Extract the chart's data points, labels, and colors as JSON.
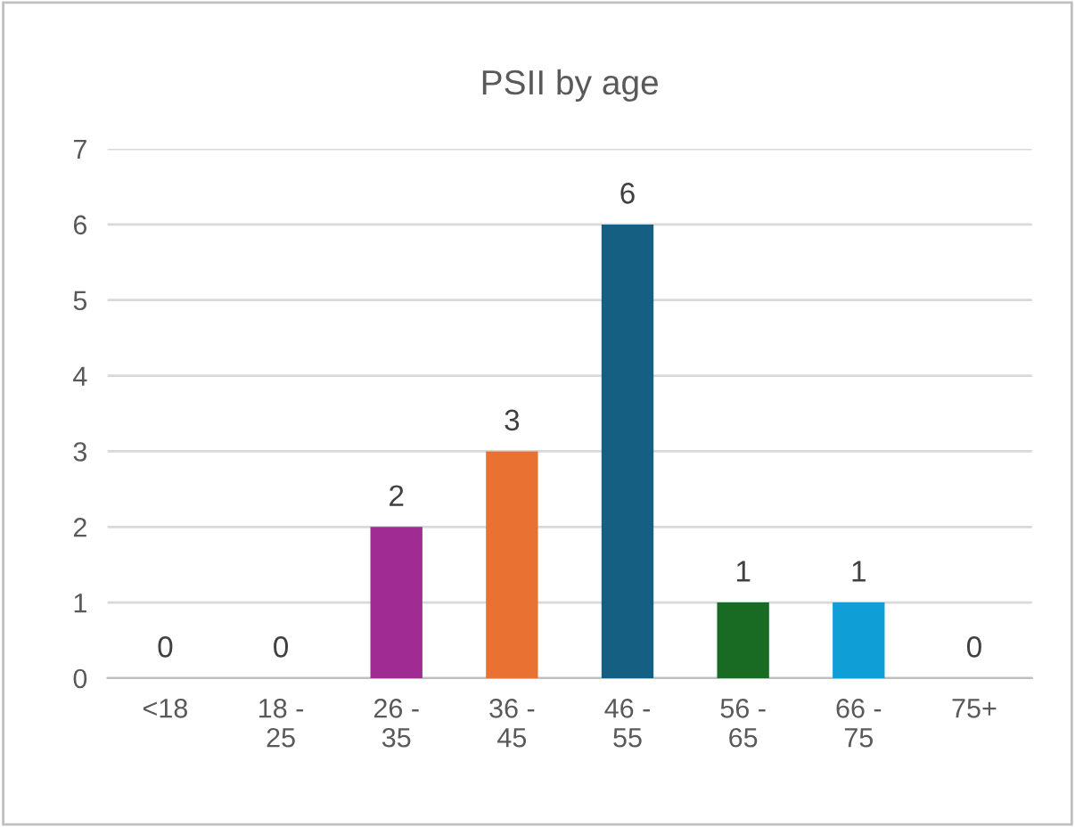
{
  "chart_data": {
    "type": "bar",
    "title": "PSII by age",
    "categories": [
      "<18",
      "18 - 25",
      "26 - 35",
      "36 - 45",
      "46 - 55",
      "56 - 65",
      "66 - 75",
      "75+"
    ],
    "values": [
      0,
      0,
      2,
      3,
      6,
      1,
      1,
      0
    ],
    "colors": [
      "#a02b93",
      "#a02b93",
      "#a02b93",
      "#e97132",
      "#156082",
      "#196b24",
      "#0f9ed5",
      "#a02b93"
    ],
    "ylim": [
      0,
      7
    ],
    "yticks": [
      0,
      1,
      2,
      3,
      4,
      5,
      6,
      7
    ],
    "grid": "y",
    "data_labels": true
  }
}
